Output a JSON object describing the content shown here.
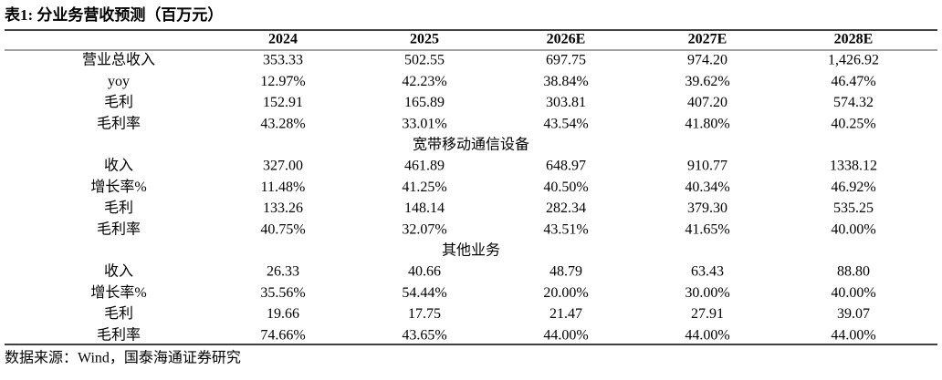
{
  "header": {
    "title": "表1: 分业务营收预测（百万元）"
  },
  "table": {
    "columns": [
      "2024",
      "2025",
      "2026E",
      "2027E",
      "2028E"
    ],
    "groups": [
      {
        "rows": [
          [
            "营业总收入",
            "353.33",
            "502.55",
            "697.75",
            "974.20",
            "1,426.92"
          ],
          [
            "yoy",
            "12.97%",
            "42.23%",
            "38.84%",
            "39.62%",
            "46.47%"
          ],
          [
            "毛利",
            "152.91",
            "165.89",
            "303.81",
            "407.20",
            "574.32"
          ],
          [
            "毛利率",
            "43.28%",
            "33.01%",
            "43.54%",
            "41.80%",
            "40.25%"
          ]
        ]
      },
      {
        "title": "宽带移动通信设备",
        "rows": [
          [
            "收入",
            "327.00",
            "461.89",
            "648.97",
            "910.77",
            "1338.12"
          ],
          [
            "增长率%",
            "11.48%",
            "41.25%",
            "40.50%",
            "40.34%",
            "46.92%"
          ],
          [
            "毛利",
            "133.26",
            "148.14",
            "282.34",
            "379.30",
            "535.25"
          ],
          [
            "毛利率",
            "40.75%",
            "32.07%",
            "43.51%",
            "41.65%",
            "40.00%"
          ]
        ]
      },
      {
        "title": "其他业务",
        "rows": [
          [
            "收入",
            "26.33",
            "40.66",
            "48.79",
            "63.43",
            "88.80"
          ],
          [
            "增长率%",
            "35.56%",
            "54.44%",
            "20.00%",
            "30.00%",
            "40.00%"
          ],
          [
            "毛利",
            "19.66",
            "17.75",
            "21.47",
            "27.91",
            "39.07"
          ],
          [
            "毛利率",
            "74.66%",
            "43.65%",
            "44.00%",
            "44.00%",
            "44.00%"
          ]
        ]
      }
    ]
  },
  "source": "数据来源：Wind，国泰海通证券研究"
}
